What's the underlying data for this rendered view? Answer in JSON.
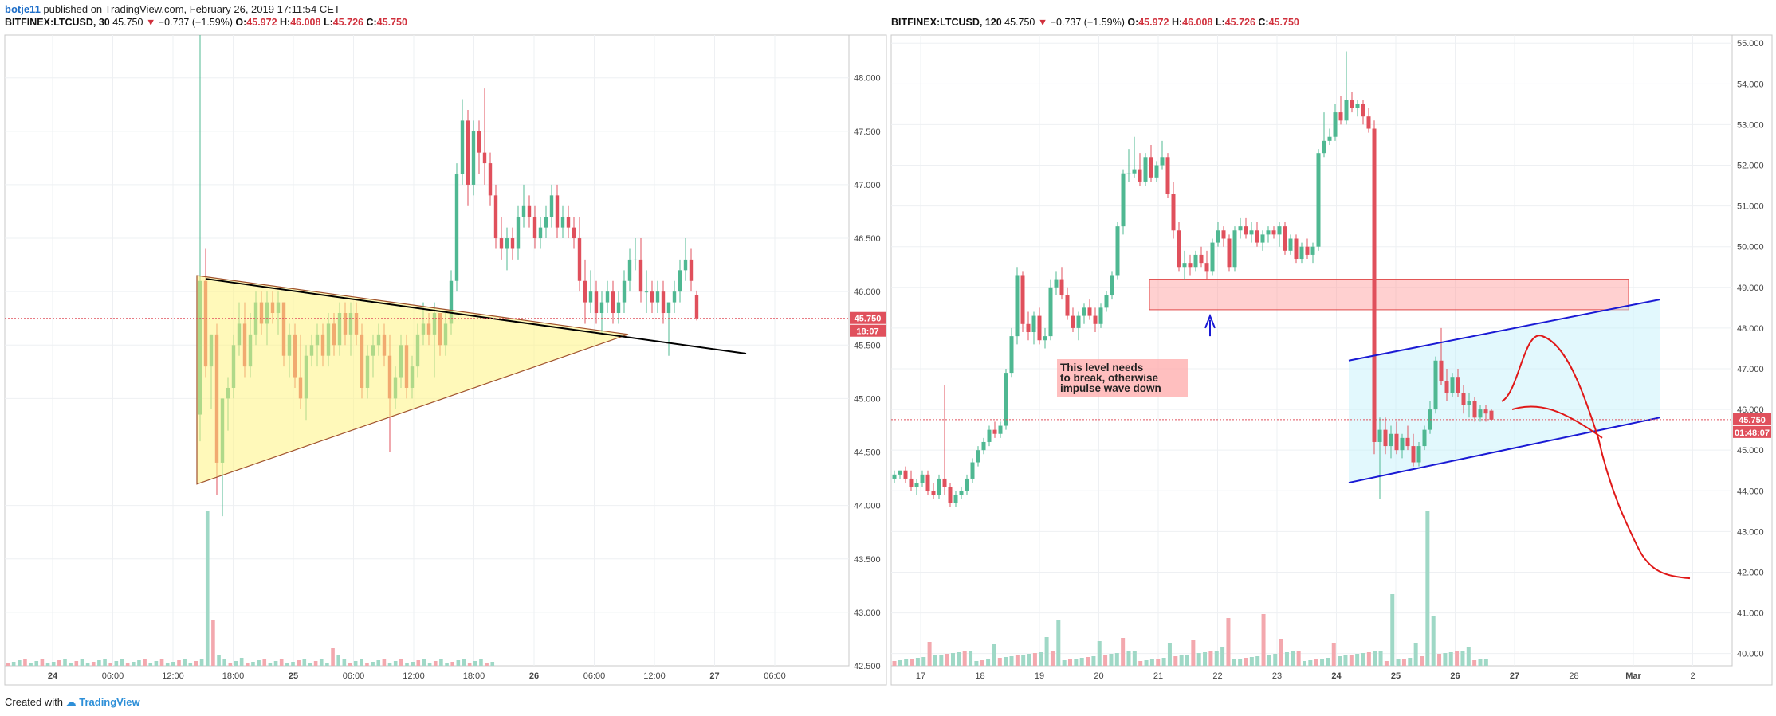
{
  "header": {
    "author": "botje11",
    "published_text": "published on TradingView.com, February 26, 2019 17:11:54 CET"
  },
  "footer": {
    "created_with": "Created with",
    "brand": "TradingView"
  },
  "colors": {
    "up": "#4fb892",
    "down": "#e0505c",
    "vol_up": "#9fd8c6",
    "vol_down": "#f3a8ae"
  },
  "chart_data": [
    {
      "type": "candlestick",
      "legend": {
        "symbol": "BITFINEX:LTCUSD, 30",
        "last": "45.750",
        "change": "−0.737 (−1.59%)",
        "o_label": "O:",
        "o": "45.972",
        "h_label": "H:",
        "h": "46.008",
        "l_label": "L:",
        "l": "45.726",
        "c_label": "C:",
        "c": "45.750"
      },
      "price_ticks": [
        "48.000",
        "47.500",
        "47.000",
        "46.500",
        "46.000",
        "45.500",
        "45.000",
        "44.500",
        "44.000",
        "43.500",
        "43.000",
        "42.500"
      ],
      "time_ticks": [
        "24",
        "06:00",
        "12:00",
        "18:00",
        "25",
        "06:00",
        "12:00",
        "18:00",
        "26",
        "06:00",
        "12:00",
        "27",
        "06:00"
      ],
      "last_price_label": "45.750",
      "countdown_label": "18:07",
      "ylim": [
        42.5,
        48.4
      ],
      "drawings": [
        "symmetrical triangle",
        "trend line"
      ]
    },
    {
      "type": "candlestick",
      "legend": {
        "symbol": "BITFINEX:LTCUSD, 120",
        "last": "45.750",
        "change": "−0.737 (−1.59%)",
        "o_label": "O:",
        "o": "45.972",
        "h_label": "H:",
        "h": "46.008",
        "l_label": "L:",
        "l": "45.726",
        "c_label": "C:",
        "c": "45.750"
      },
      "price_ticks": [
        "55.000",
        "54.000",
        "53.000",
        "52.000",
        "51.000",
        "50.000",
        "49.000",
        "48.000",
        "47.000",
        "46.000",
        "45.000",
        "44.000",
        "43.000",
        "42.000",
        "41.000",
        "40.000"
      ],
      "time_ticks": [
        "17",
        "18",
        "19",
        "20",
        "21",
        "22",
        "23",
        "24",
        "25",
        "26",
        "27",
        "28",
        "Mar",
        "2"
      ],
      "last_price_label": "45.750",
      "countdown_label": "01:48:07",
      "ylim": [
        39.7,
        55.2
      ],
      "annotation": "This level needs\nto break, otherwise\nimpulse wave down",
      "drawings": [
        "resistance zone",
        "rising channel",
        "projected path",
        "arrow up"
      ]
    }
  ]
}
